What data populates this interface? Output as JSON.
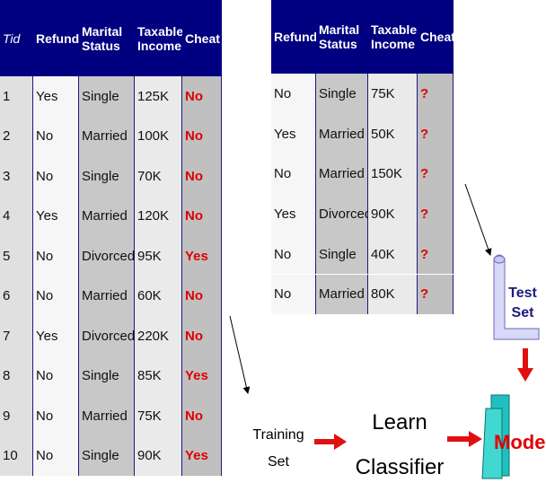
{
  "training_table": {
    "headers": [
      "Tid",
      "Refund",
      "Marital Status",
      "Taxable Income",
      "Cheat"
    ],
    "rows": [
      [
        "1",
        "Yes",
        "Single",
        "125K",
        "No"
      ],
      [
        "2",
        "No",
        "Married",
        "100K",
        "No"
      ],
      [
        "3",
        "No",
        "Single",
        "70K",
        "No"
      ],
      [
        "4",
        "Yes",
        "Married",
        "120K",
        "No"
      ],
      [
        "5",
        "No",
        "Divorced",
        "95K",
        "Yes"
      ],
      [
        "6",
        "No",
        "Married",
        "60K",
        "No"
      ],
      [
        "7",
        "Yes",
        "Divorced",
        "220K",
        "No"
      ],
      [
        "8",
        "No",
        "Single",
        "85K",
        "Yes"
      ],
      [
        "9",
        "No",
        "Married",
        "75K",
        "No"
      ],
      [
        "10",
        "No",
        "Single",
        "90K",
        "Yes"
      ]
    ]
  },
  "test_table": {
    "headers": [
      "Refund",
      "Marital Status",
      "Taxable Income",
      "Cheat"
    ],
    "rows": [
      [
        "No",
        "Single",
        "75K",
        "?"
      ],
      [
        "Yes",
        "Married",
        "50K",
        "?"
      ],
      [
        "No",
        "Married",
        "150K",
        "?"
      ],
      [
        "Yes",
        "Divorced",
        "90K",
        "?"
      ],
      [
        "No",
        "Single",
        "40K",
        "?"
      ],
      [
        "No",
        "Married",
        "80K",
        "?"
      ]
    ]
  },
  "labels": {
    "training_set": "Training Set",
    "learn_classifier": "Learn Classifier",
    "test_set": "Test Set",
    "model": "Model"
  }
}
